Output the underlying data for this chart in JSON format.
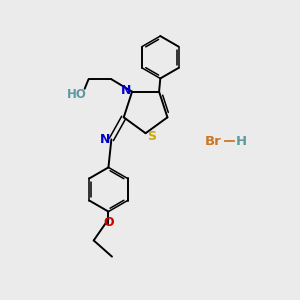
{
  "bg_color": "#ebebeb",
  "atom_colors": {
    "C": "#000000",
    "N": "#0000cc",
    "O": "#cc0000",
    "S": "#ccaa00",
    "Br": "#cc7722",
    "H_label": "#5b9aa0",
    "Ho": "#5b9aa0"
  },
  "bond_color": "#000000",
  "lw": 1.4,
  "lw_double": 1.1
}
